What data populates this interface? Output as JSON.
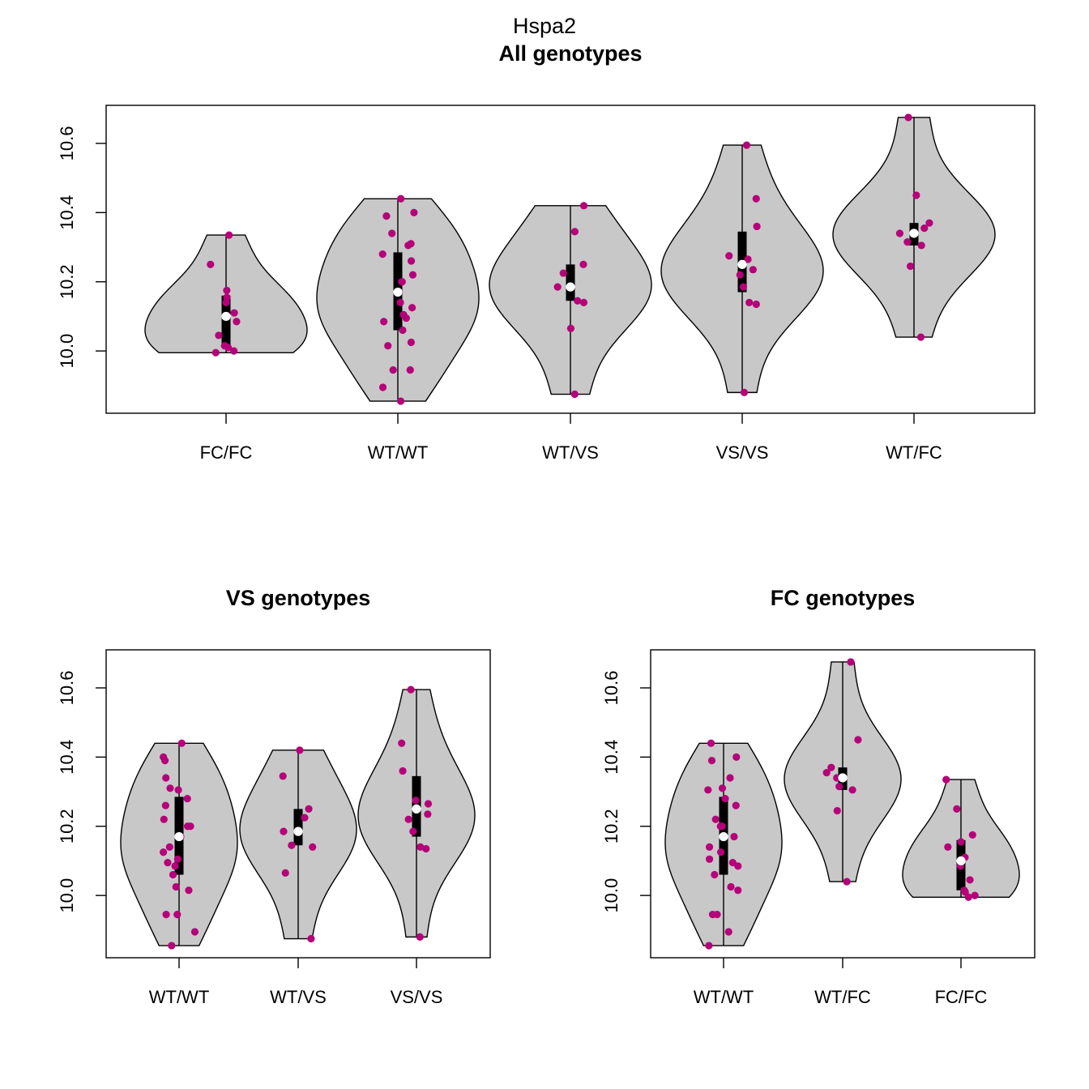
{
  "figure_title": "Hspa2",
  "chart_data": [
    {
      "type": "violin",
      "title": "All genotypes",
      "ylim": [
        9.82,
        10.71
      ],
      "yticks": [
        "10.0",
        "10.2",
        "10.4",
        "10.6"
      ],
      "ytick_values": [
        10.0,
        10.2,
        10.4,
        10.6
      ],
      "groups": [
        {
          "label": "FC/FC",
          "min": 9.995,
          "max": 10.335,
          "q1": 10.015,
          "median": 10.1,
          "q3": 10.16,
          "points": [
            9.995,
            10.0,
            10.01,
            10.015,
            10.045,
            10.085,
            10.11,
            10.14,
            10.155,
            10.175,
            10.25,
            10.335
          ]
        },
        {
          "label": "WT/WT",
          "min": 9.855,
          "max": 10.44,
          "q1": 10.06,
          "median": 10.17,
          "q3": 10.285,
          "points": [
            9.855,
            9.895,
            9.945,
            9.945,
            10.015,
            10.025,
            10.06,
            10.095,
            10.085,
            10.105,
            10.125,
            10.14,
            10.17,
            10.2,
            10.2,
            10.22,
            10.26,
            10.28,
            10.305,
            10.31,
            10.34,
            10.39,
            10.4,
            10.44
          ]
        },
        {
          "label": "WT/VS",
          "min": 9.875,
          "max": 10.42,
          "q1": 10.145,
          "median": 10.185,
          "q3": 10.25,
          "points": [
            9.875,
            10.065,
            10.14,
            10.145,
            10.185,
            10.225,
            10.25,
            10.345,
            10.42
          ]
        },
        {
          "label": "VS/VS",
          "min": 9.88,
          "max": 10.595,
          "q1": 10.17,
          "median": 10.25,
          "q3": 10.345,
          "points": [
            9.88,
            10.135,
            10.14,
            10.185,
            10.22,
            10.235,
            10.265,
            10.275,
            10.36,
            10.44,
            10.595
          ]
        },
        {
          "label": "WT/FC",
          "min": 10.04,
          "max": 10.675,
          "q1": 10.305,
          "median": 10.34,
          "q3": 10.37,
          "points": [
            10.04,
            10.245,
            10.305,
            10.315,
            10.34,
            10.355,
            10.37,
            10.45,
            10.675
          ]
        }
      ]
    },
    {
      "type": "violin",
      "title": "VS genotypes",
      "ylim": [
        9.82,
        10.71
      ],
      "yticks": [
        "10.0",
        "10.2",
        "10.4",
        "10.6"
      ],
      "ytick_values": [
        10.0,
        10.2,
        10.4,
        10.6
      ],
      "groups": [
        {
          "label": "WT/WT",
          "min": 9.855,
          "max": 10.44,
          "q1": 10.06,
          "median": 10.17,
          "q3": 10.285,
          "points": [
            9.855,
            9.895,
            9.945,
            9.945,
            10.015,
            10.025,
            10.06,
            10.095,
            10.085,
            10.105,
            10.125,
            10.14,
            10.17,
            10.2,
            10.2,
            10.22,
            10.26,
            10.28,
            10.305,
            10.31,
            10.34,
            10.39,
            10.4,
            10.44
          ]
        },
        {
          "label": "WT/VS",
          "min": 9.875,
          "max": 10.42,
          "q1": 10.145,
          "median": 10.185,
          "q3": 10.25,
          "points": [
            9.875,
            10.065,
            10.14,
            10.145,
            10.185,
            10.225,
            10.25,
            10.345,
            10.42
          ]
        },
        {
          "label": "VS/VS",
          "min": 9.88,
          "max": 10.595,
          "q1": 10.17,
          "median": 10.25,
          "q3": 10.345,
          "points": [
            9.88,
            10.135,
            10.14,
            10.185,
            10.22,
            10.235,
            10.265,
            10.275,
            10.36,
            10.44,
            10.595
          ]
        }
      ]
    },
    {
      "type": "violin",
      "title": "FC genotypes",
      "ylim": [
        9.82,
        10.71
      ],
      "yticks": [
        "10.0",
        "10.2",
        "10.4",
        "10.6"
      ],
      "ytick_values": [
        10.0,
        10.2,
        10.4,
        10.6
      ],
      "groups": [
        {
          "label": "WT/WT",
          "min": 9.855,
          "max": 10.44,
          "q1": 10.06,
          "median": 10.17,
          "q3": 10.285,
          "points": [
            9.855,
            9.895,
            9.945,
            9.945,
            10.015,
            10.025,
            10.06,
            10.095,
            10.085,
            10.105,
            10.125,
            10.14,
            10.17,
            10.2,
            10.2,
            10.22,
            10.26,
            10.28,
            10.305,
            10.31,
            10.34,
            10.39,
            10.4,
            10.44
          ]
        },
        {
          "label": "WT/FC",
          "min": 10.04,
          "max": 10.675,
          "q1": 10.305,
          "median": 10.34,
          "q3": 10.37,
          "points": [
            10.04,
            10.245,
            10.305,
            10.315,
            10.34,
            10.355,
            10.37,
            10.45,
            10.675
          ]
        },
        {
          "label": "FC/FC",
          "min": 9.995,
          "max": 10.335,
          "q1": 10.015,
          "median": 10.1,
          "q3": 10.16,
          "points": [
            9.995,
            10.0,
            10.01,
            10.015,
            10.045,
            10.085,
            10.11,
            10.14,
            10.155,
            10.175,
            10.25,
            10.335
          ]
        }
      ]
    }
  ],
  "colors": {
    "violin_fill": "#c8c8c8",
    "point": "#b5007a",
    "median": "#ffffff",
    "box": "#000000"
  }
}
